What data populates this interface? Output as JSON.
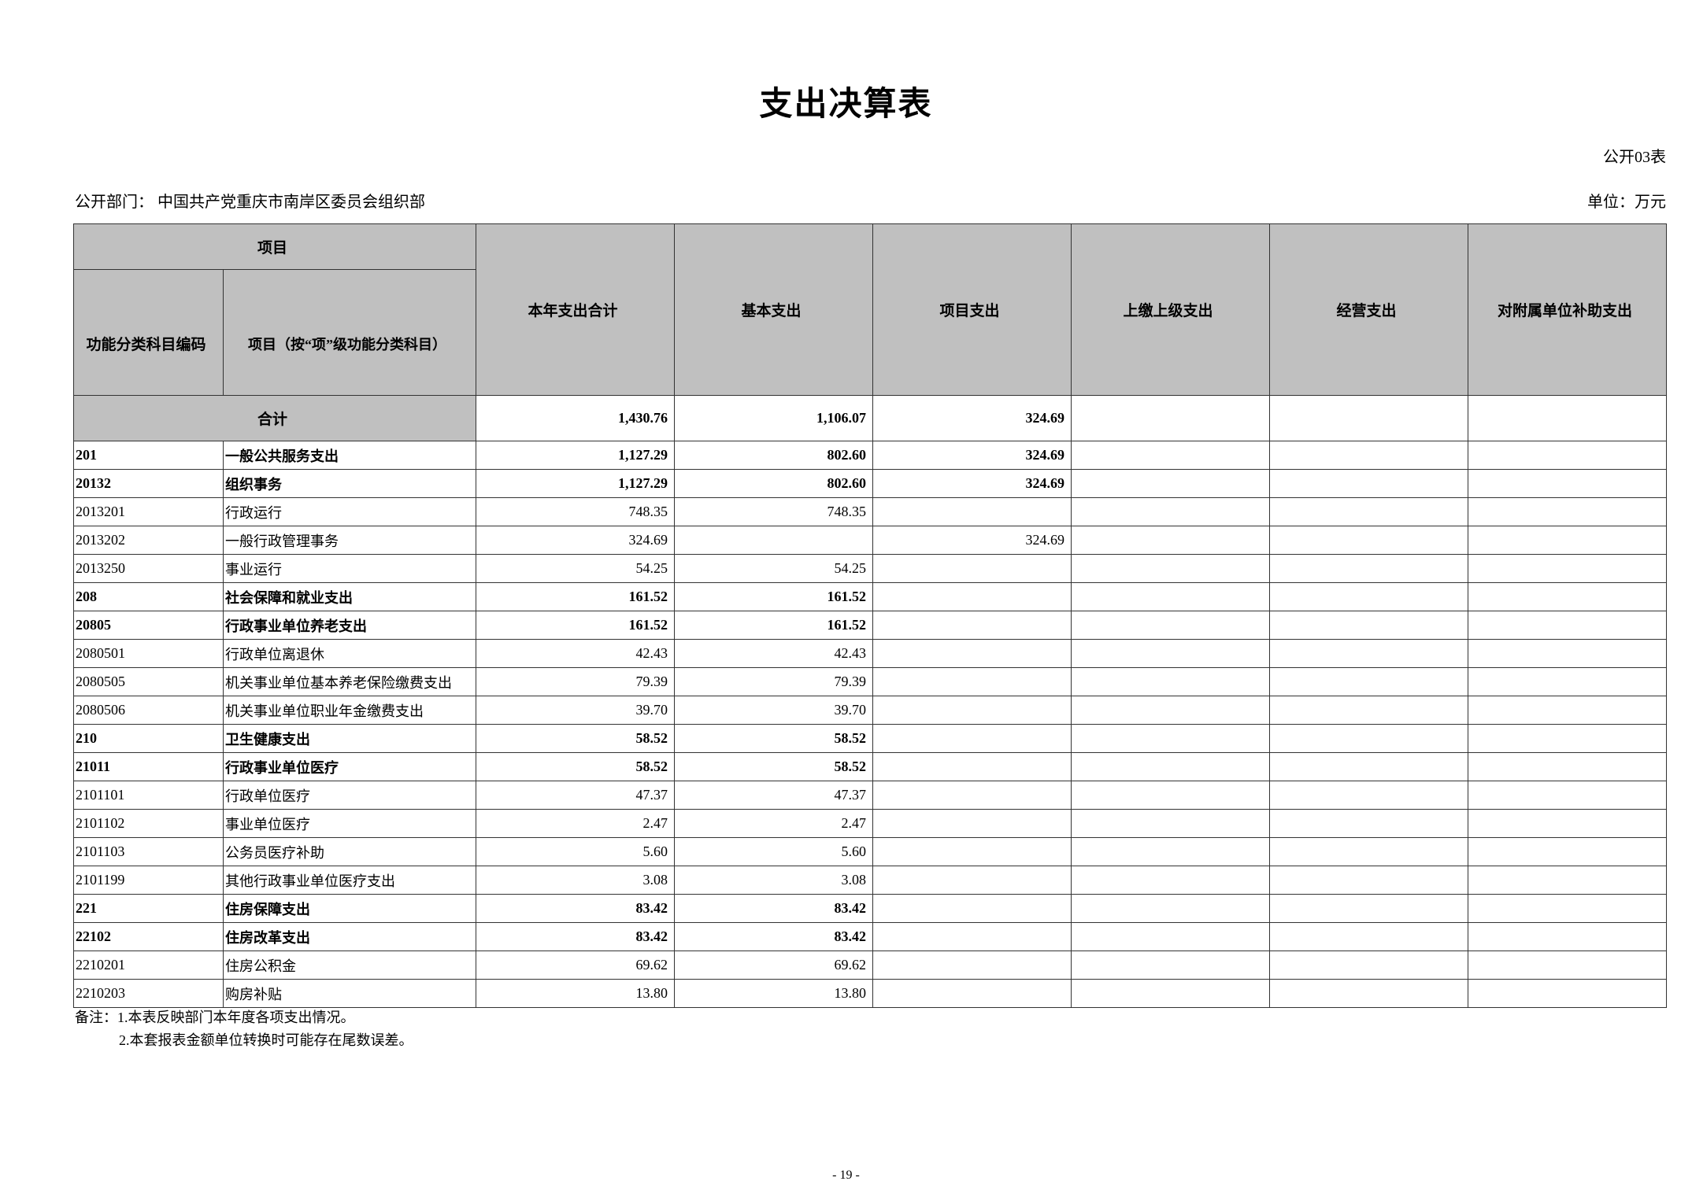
{
  "title": "支出决算表",
  "form_no": "公开03表",
  "department": "公开部门：  中国共产党重庆市南岸区委员会组织部",
  "unit": "单位：万元",
  "header": {
    "project": "项目",
    "code": "功能分类科目编码",
    "name": "项目（按“项”级功能分类科目）",
    "cols": [
      "本年支出合计",
      "基本支出",
      "项目支出",
      "上缴上级支出",
      "经营支出",
      "对附属单位补助支出"
    ]
  },
  "total": {
    "label": "合计",
    "values": [
      "1,430.76",
      "1,106.07",
      "324.69",
      "",
      "",
      ""
    ]
  },
  "rows": [
    {
      "code": "201",
      "name": "一般公共服务支出",
      "bold": true,
      "values": [
        "1,127.29",
        "802.60",
        "324.69",
        "",
        "",
        ""
      ]
    },
    {
      "code": "20132",
      "name": "组织事务",
      "bold": true,
      "values": [
        "1,127.29",
        "802.60",
        "324.69",
        "",
        "",
        ""
      ]
    },
    {
      "code": "2013201",
      "name": "行政运行",
      "bold": false,
      "values": [
        "748.35",
        "748.35",
        "",
        "",
        "",
        ""
      ]
    },
    {
      "code": "2013202",
      "name": "一般行政管理事务",
      "bold": false,
      "values": [
        "324.69",
        "",
        "324.69",
        "",
        "",
        ""
      ]
    },
    {
      "code": "2013250",
      "name": "事业运行",
      "bold": false,
      "values": [
        "54.25",
        "54.25",
        "",
        "",
        "",
        ""
      ]
    },
    {
      "code": "208",
      "name": "社会保障和就业支出",
      "bold": true,
      "values": [
        "161.52",
        "161.52",
        "",
        "",
        "",
        ""
      ]
    },
    {
      "code": "20805",
      "name": "行政事业单位养老支出",
      "bold": true,
      "values": [
        "161.52",
        "161.52",
        "",
        "",
        "",
        ""
      ]
    },
    {
      "code": "2080501",
      "name": "行政单位离退休",
      "bold": false,
      "values": [
        "42.43",
        "42.43",
        "",
        "",
        "",
        ""
      ]
    },
    {
      "code": "2080505",
      "name": "机关事业单位基本养老保险缴费支出",
      "bold": false,
      "values": [
        "79.39",
        "79.39",
        "",
        "",
        "",
        ""
      ]
    },
    {
      "code": "2080506",
      "name": "机关事业单位职业年金缴费支出",
      "bold": false,
      "values": [
        "39.70",
        "39.70",
        "",
        "",
        "",
        ""
      ]
    },
    {
      "code": "210",
      "name": "卫生健康支出",
      "bold": true,
      "values": [
        "58.52",
        "58.52",
        "",
        "",
        "",
        ""
      ]
    },
    {
      "code": "21011",
      "name": "行政事业单位医疗",
      "bold": true,
      "values": [
        "58.52",
        "58.52",
        "",
        "",
        "",
        ""
      ]
    },
    {
      "code": "2101101",
      "name": "行政单位医疗",
      "bold": false,
      "values": [
        "47.37",
        "47.37",
        "",
        "",
        "",
        ""
      ]
    },
    {
      "code": "2101102",
      "name": "事业单位医疗",
      "bold": false,
      "values": [
        "2.47",
        "2.47",
        "",
        "",
        "",
        ""
      ]
    },
    {
      "code": "2101103",
      "name": "公务员医疗补助",
      "bold": false,
      "values": [
        "5.60",
        "5.60",
        "",
        "",
        "",
        ""
      ]
    },
    {
      "code": "2101199",
      "name": "其他行政事业单位医疗支出",
      "bold": false,
      "values": [
        "3.08",
        "3.08",
        "",
        "",
        "",
        ""
      ]
    },
    {
      "code": "221",
      "name": "住房保障支出",
      "bold": true,
      "values": [
        "83.42",
        "83.42",
        "",
        "",
        "",
        ""
      ]
    },
    {
      "code": "22102",
      "name": "住房改革支出",
      "bold": true,
      "values": [
        "83.42",
        "83.42",
        "",
        "",
        "",
        ""
      ]
    },
    {
      "code": "2210201",
      "name": "住房公积金",
      "bold": false,
      "values": [
        "69.62",
        "69.62",
        "",
        "",
        "",
        ""
      ]
    },
    {
      "code": "2210203",
      "name": "购房补贴",
      "bold": false,
      "values": [
        "13.80",
        "13.80",
        "",
        "",
        "",
        ""
      ]
    }
  ],
  "notes": [
    "备注：1.本表反映部门本年度各项支出情况。",
    "2.本套报表金额单位转换时可能存在尾数误差。"
  ],
  "page_number": "- 19 -"
}
